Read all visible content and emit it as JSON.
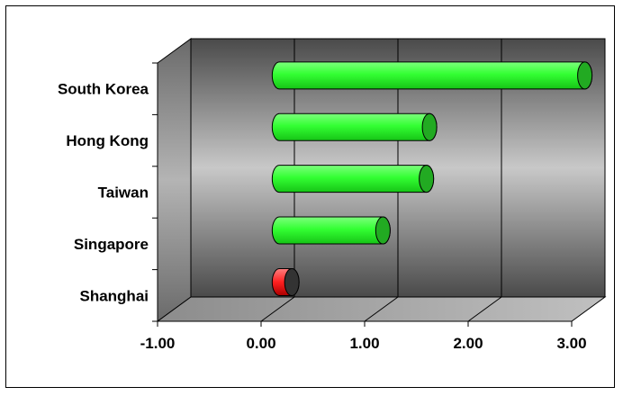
{
  "chart_data": {
    "type": "bar",
    "orientation": "horizontal",
    "style": "3d-cylinder",
    "title": "",
    "xlabel": "",
    "ylabel": "",
    "categories": [
      "South Korea",
      "Hong Kong",
      "Taiwan",
      "Singapore",
      "Shanghai"
    ],
    "values": [
      2.95,
      1.45,
      1.42,
      1.0,
      0.12
    ],
    "xlim": [
      -1.0,
      3.0
    ],
    "x_ticks": [
      -1.0,
      0.0,
      1.0,
      2.0,
      3.0
    ],
    "x_tick_labels": [
      "-1.00",
      "0.00",
      "1.00",
      "2.00",
      "3.00"
    ],
    "grid": "vertical",
    "legend": "none",
    "colors": {
      "bar_fill": "#33ff33",
      "bar_end": "#22aa22",
      "highlight_bar_fill": "#ff3333",
      "highlight_bar_end": "#333333",
      "wall_gradient": [
        "#505050",
        "#c8c8c8",
        "#505050"
      ],
      "floor": "#a0a0a0",
      "side_wall": "#909090"
    },
    "highlight_category": "Shanghai"
  }
}
